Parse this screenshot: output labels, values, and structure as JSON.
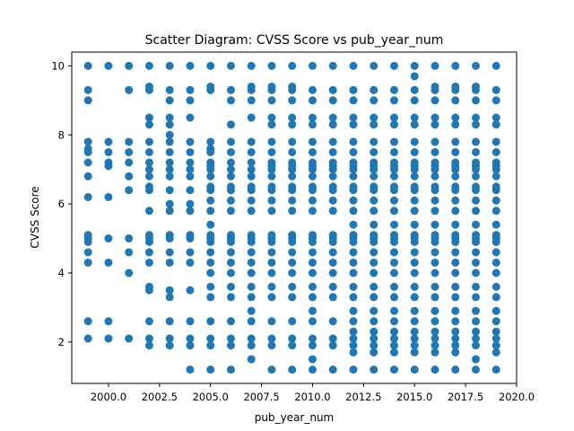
{
  "chart_data": {
    "type": "scatter",
    "title": "Scatter Diagram: CVSS Score vs pub_year_num",
    "xlabel": "pub_year_num",
    "ylabel": "CVSS Score",
    "xlim": [
      1998.2,
      2020.0
    ],
    "ylim": [
      0.8,
      10.4
    ],
    "xticks": [
      "2000.0",
      "2002.5",
      "2005.0",
      "2007.5",
      "2010.0",
      "2012.5",
      "2015.0",
      "2017.5",
      "2020.0"
    ],
    "yticks": [
      "2",
      "4",
      "6",
      "8",
      "10"
    ],
    "grid": false,
    "legend": "none",
    "marker_color": "#1f77b4",
    "series": [
      {
        "points_by_year": [
          {
            "x": 1999,
            "y": [
              10.0,
              9.3,
              9.0,
              7.8,
              7.6,
              7.5,
              7.2,
              6.8,
              6.2,
              5.1,
              5.0,
              4.9,
              4.6,
              4.3,
              2.6,
              2.1
            ]
          },
          {
            "x": 2000,
            "y": [
              10.0,
              7.8,
              7.5,
              7.2,
              7.1,
              6.2,
              5.0,
              4.3,
              2.6,
              2.1
            ]
          },
          {
            "x": 2001,
            "y": [
              10.0,
              9.3,
              7.8,
              7.5,
              7.2,
              6.8,
              6.4,
              5.0,
              4.6,
              4.0,
              2.1
            ]
          },
          {
            "x": 2002,
            "y": [
              10.0,
              9.4,
              9.3,
              8.5,
              8.3,
              7.8,
              7.5,
              7.2,
              7.0,
              6.8,
              6.5,
              6.4,
              5.8,
              5.1,
              5.0,
              4.9,
              4.6,
              4.3,
              3.6,
              3.5,
              2.6,
              2.1,
              1.9
            ]
          },
          {
            "x": 2003,
            "y": [
              10.0,
              9.3,
              9.0,
              8.5,
              8.3,
              8.0,
              7.8,
              7.5,
              7.2,
              7.0,
              6.8,
              6.4,
              6.0,
              5.8,
              5.1,
              5.0,
              4.6,
              4.3,
              3.5,
              3.3,
              2.6,
              2.1,
              1.9
            ]
          },
          {
            "x": 2004,
            "y": [
              10.0,
              9.3,
              9.0,
              8.5,
              7.8,
              7.5,
              7.2,
              7.0,
              6.8,
              6.4,
              6.0,
              5.8,
              5.1,
              5.0,
              4.6,
              4.3,
              3.5,
              2.6,
              2.1,
              1.9,
              1.2
            ]
          },
          {
            "x": 2005,
            "y": [
              10.0,
              9.4,
              9.3,
              7.8,
              7.6,
              7.5,
              7.2,
              7.1,
              7.0,
              6.8,
              6.5,
              6.4,
              6.1,
              5.8,
              5.4,
              5.1,
              5.0,
              4.9,
              4.6,
              4.3,
              4.0,
              3.6,
              3.3,
              2.6,
              2.1,
              1.9,
              1.2
            ]
          },
          {
            "x": 2006,
            "y": [
              10.0,
              9.3,
              9.0,
              8.3,
              7.8,
              7.5,
              7.2,
              7.0,
              6.8,
              6.5,
              6.4,
              6.1,
              5.8,
              5.1,
              5.0,
              4.9,
              4.6,
              4.3,
              4.0,
              3.6,
              3.3,
              2.6,
              2.1,
              1.9,
              1.2
            ]
          },
          {
            "x": 2007,
            "y": [
              10.0,
              9.4,
              9.3,
              9.0,
              8.5,
              7.8,
              7.5,
              7.2,
              7.0,
              6.8,
              6.5,
              6.4,
              6.1,
              5.8,
              5.1,
              5.0,
              4.9,
              4.6,
              4.3,
              4.0,
              3.6,
              3.3,
              2.9,
              2.6,
              2.1,
              1.9,
              1.5
            ]
          },
          {
            "x": 2008,
            "y": [
              10.0,
              9.4,
              9.3,
              9.0,
              8.5,
              8.3,
              7.8,
              7.5,
              7.2,
              7.1,
              7.0,
              6.8,
              6.5,
              6.4,
              6.1,
              5.8,
              5.1,
              5.0,
              4.9,
              4.6,
              4.3,
              4.0,
              3.6,
              3.3,
              2.6,
              2.1,
              1.9,
              1.2
            ]
          },
          {
            "x": 2009,
            "y": [
              10.0,
              9.4,
              9.3,
              9.0,
              8.5,
              8.3,
              7.8,
              7.5,
              7.2,
              7.1,
              7.0,
              6.8,
              6.5,
              6.4,
              6.1,
              5.8,
              5.1,
              5.0,
              4.9,
              4.6,
              4.3,
              4.0,
              3.6,
              3.3,
              2.6,
              2.1,
              1.9,
              1.2
            ]
          },
          {
            "x": 2010,
            "y": [
              10.0,
              9.3,
              9.0,
              8.5,
              8.3,
              7.8,
              7.5,
              7.2,
              7.1,
              7.0,
              6.8,
              6.5,
              6.4,
              6.1,
              5.8,
              5.1,
              5.0,
              4.9,
              4.6,
              4.3,
              4.0,
              3.6,
              3.3,
              2.9,
              2.6,
              2.1,
              1.9,
              1.5,
              1.2
            ]
          },
          {
            "x": 2011,
            "y": [
              10.0,
              9.3,
              9.0,
              8.5,
              8.3,
              7.8,
              7.5,
              7.2,
              7.1,
              7.0,
              6.8,
              6.5,
              6.4,
              6.1,
              5.8,
              5.1,
              5.0,
              4.9,
              4.6,
              4.3,
              4.0,
              3.6,
              3.3,
              2.6,
              2.1,
              1.9,
              1.2
            ]
          },
          {
            "x": 2012,
            "y": [
              10.0,
              9.3,
              9.0,
              8.5,
              8.3,
              7.8,
              7.5,
              7.2,
              7.1,
              7.0,
              6.8,
              6.5,
              6.4,
              6.1,
              5.8,
              5.4,
              5.1,
              5.0,
              4.9,
              4.6,
              4.3,
              4.0,
              3.6,
              3.3,
              2.9,
              2.6,
              2.3,
              2.1,
              1.9,
              1.7,
              1.2
            ]
          },
          {
            "x": 2013,
            "y": [
              10.0,
              9.3,
              9.0,
              8.5,
              8.3,
              7.8,
              7.5,
              7.2,
              7.1,
              7.0,
              6.8,
              6.5,
              6.4,
              6.1,
              5.8,
              5.4,
              5.1,
              5.0,
              4.9,
              4.6,
              4.3,
              4.0,
              3.6,
              3.3,
              2.9,
              2.6,
              2.3,
              2.1,
              1.9,
              1.7,
              1.2
            ]
          },
          {
            "x": 2014,
            "y": [
              10.0,
              9.3,
              9.0,
              8.5,
              8.3,
              7.8,
              7.5,
              7.2,
              7.1,
              7.0,
              6.8,
              6.5,
              6.4,
              6.1,
              5.8,
              5.4,
              5.1,
              5.0,
              4.9,
              4.6,
              4.3,
              4.0,
              3.6,
              3.3,
              2.9,
              2.6,
              2.3,
              2.1,
              1.9,
              1.7,
              1.2
            ]
          },
          {
            "x": 2015,
            "y": [
              10.0,
              9.7,
              9.3,
              9.0,
              8.5,
              8.3,
              7.8,
              7.5,
              7.2,
              7.1,
              7.0,
              6.8,
              6.5,
              6.4,
              6.1,
              5.8,
              5.4,
              5.1,
              5.0,
              4.9,
              4.6,
              4.3,
              4.0,
              3.6,
              3.3,
              2.9,
              2.6,
              2.3,
              2.1,
              1.9,
              1.7,
              1.2
            ]
          },
          {
            "x": 2016,
            "y": [
              10.0,
              9.4,
              9.3,
              9.0,
              8.5,
              8.3,
              7.8,
              7.5,
              7.2,
              7.1,
              7.0,
              6.8,
              6.5,
              6.4,
              6.1,
              5.8,
              5.4,
              5.1,
              5.0,
              4.9,
              4.6,
              4.3,
              4.0,
              3.6,
              3.3,
              2.9,
              2.6,
              2.3,
              2.1,
              1.9,
              1.7,
              1.2
            ]
          },
          {
            "x": 2017,
            "y": [
              10.0,
              9.4,
              9.3,
              9.0,
              8.5,
              8.3,
              7.8,
              7.5,
              7.2,
              7.1,
              7.0,
              6.8,
              6.5,
              6.4,
              6.1,
              5.8,
              5.4,
              5.1,
              5.0,
              4.9,
              4.6,
              4.3,
              4.0,
              3.6,
              3.3,
              2.9,
              2.6,
              2.3,
              2.1,
              1.9,
              1.7,
              1.2
            ]
          },
          {
            "x": 2018,
            "y": [
              10.0,
              9.4,
              9.3,
              9.0,
              8.5,
              8.3,
              7.8,
              7.5,
              7.2,
              7.1,
              7.0,
              6.8,
              6.5,
              6.4,
              6.1,
              5.8,
              5.4,
              5.1,
              5.0,
              4.9,
              4.6,
              4.3,
              4.0,
              3.6,
              3.3,
              2.9,
              2.6,
              2.3,
              2.1,
              1.9,
              1.5,
              1.2
            ]
          },
          {
            "x": 2019,
            "y": [
              10.0,
              9.3,
              9.0,
              8.5,
              8.3,
              7.8,
              7.5,
              7.2,
              7.1,
              7.0,
              6.8,
              6.5,
              6.4,
              6.1,
              5.8,
              5.4,
              5.1,
              5.0,
              4.9,
              4.6,
              4.3,
              4.0,
              3.6,
              3.3,
              2.9,
              2.6,
              2.3,
              2.1,
              1.9,
              1.7,
              1.2
            ]
          }
        ]
      }
    ]
  }
}
